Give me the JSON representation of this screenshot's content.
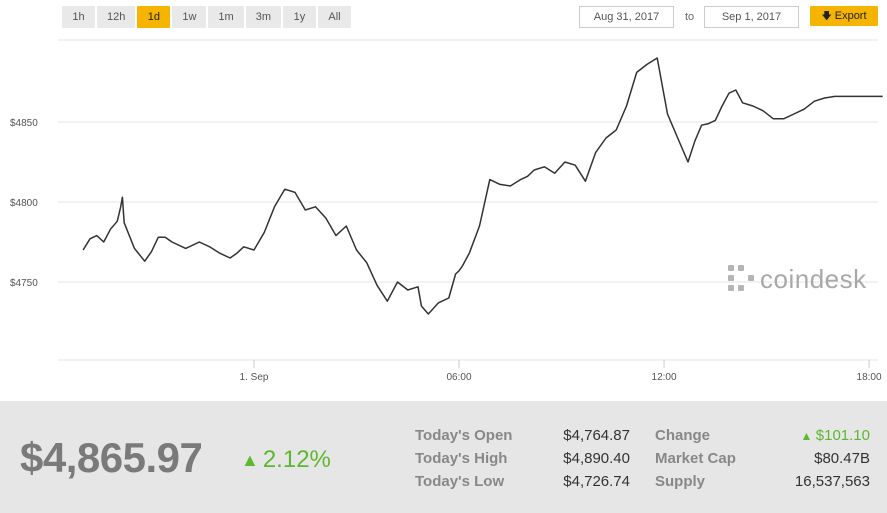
{
  "toolbar": {
    "ranges": [
      {
        "label": "1h",
        "active": false
      },
      {
        "label": "12h",
        "active": false
      },
      {
        "label": "1d",
        "active": true
      },
      {
        "label": "1w",
        "active": false
      },
      {
        "label": "1m",
        "active": false
      },
      {
        "label": "3m",
        "active": false
      },
      {
        "label": "1y",
        "active": false
      },
      {
        "label": "All",
        "active": false
      }
    ],
    "date_from": "Aug 31, 2017",
    "to_label": "to",
    "date_to": "Sep 1, 2017",
    "export_label": "Export",
    "accent": "#f5b400"
  },
  "watermark": "coindesk",
  "chart_data": {
    "type": "line",
    "x_ticks": [
      "1. Sep",
      "06:00",
      "12:00",
      "18:00"
    ],
    "y_ticks": [
      "$4750",
      "$4800",
      "$4850"
    ],
    "ylim": [
      4700,
      4900
    ],
    "grid": true,
    "line_color": "#333333",
    "series": [
      {
        "x_hours": [
          -5.0,
          -4.8,
          -4.6,
          -4.4,
          -4.2,
          -4.0,
          -3.9,
          -3.85,
          -3.8,
          -3.5,
          -3.2,
          -3.0,
          -2.8,
          -2.6,
          -2.4,
          -2.0,
          -1.6,
          -1.3,
          -1.0,
          -0.7,
          -0.5,
          -0.3,
          0.0,
          0.3,
          0.6,
          0.9,
          1.2,
          1.5,
          1.8,
          2.1,
          2.4,
          2.7,
          3.0,
          3.3,
          3.6,
          3.9,
          4.2,
          4.5,
          4.8,
          4.9,
          5.1,
          5.4,
          5.7,
          5.9,
          6.0,
          6.1,
          6.3,
          6.6,
          6.9,
          7.2,
          7.5,
          7.8,
          8.0,
          8.2,
          8.5,
          8.8,
          9.1,
          9.4,
          9.7,
          10.0,
          10.3,
          10.6,
          10.9,
          11.2,
          11.5,
          11.8,
          12.1,
          12.4,
          12.7,
          12.9,
          13.1,
          13.3,
          13.5,
          13.7,
          13.9,
          14.1,
          14.3,
          14.6,
          14.9,
          15.2,
          15.5,
          15.8,
          16.1,
          16.4,
          16.7,
          17.0,
          17.3,
          17.6,
          17.9,
          18.2,
          18.4
        ],
        "values": [
          4770,
          4777,
          4779,
          4775,
          4783,
          4788,
          4797,
          4803,
          4787,
          4771,
          4763,
          4769,
          4778,
          4778,
          4775,
          4771,
          4775,
          4772,
          4768,
          4765,
          4768,
          4772,
          4770,
          4781,
          4797,
          4808,
          4806,
          4795,
          4797,
          4790,
          4779,
          4785,
          4770,
          4762,
          4748,
          4738,
          4750,
          4745,
          4747,
          4735,
          4730,
          4737,
          4740,
          4755,
          4757,
          4760,
          4768,
          4785,
          4814,
          4811,
          4810,
          4814,
          4816,
          4820,
          4822,
          4818,
          4825,
          4823,
          4813,
          4831,
          4840,
          4845,
          4860,
          4881,
          4886,
          4890,
          4855,
          4840,
          4825,
          4838,
          4848,
          4849,
          4851,
          4860,
          4868,
          4870,
          4862,
          4860,
          4857,
          4852,
          4852,
          4855,
          4858,
          4863,
          4865,
          4866,
          4866,
          4866,
          4866,
          4866,
          4866
        ]
      }
    ]
  },
  "stats": {
    "price": "$4,865.97",
    "pct_change": "2.12%",
    "rows": [
      {
        "label": "Today's Open",
        "value": "$4,764.87"
      },
      {
        "label": "Today's High",
        "value": "$4,890.40"
      },
      {
        "label": "Today's Low",
        "value": "$4,726.74"
      }
    ],
    "rows2": [
      {
        "label": "Change",
        "value": "$101.10",
        "up": true
      },
      {
        "label": "Market Cap",
        "value": "$80.47B",
        "up": false
      },
      {
        "label": "Supply",
        "value": "16,537,563",
        "up": false
      }
    ],
    "up_color": "#5cb82e"
  }
}
